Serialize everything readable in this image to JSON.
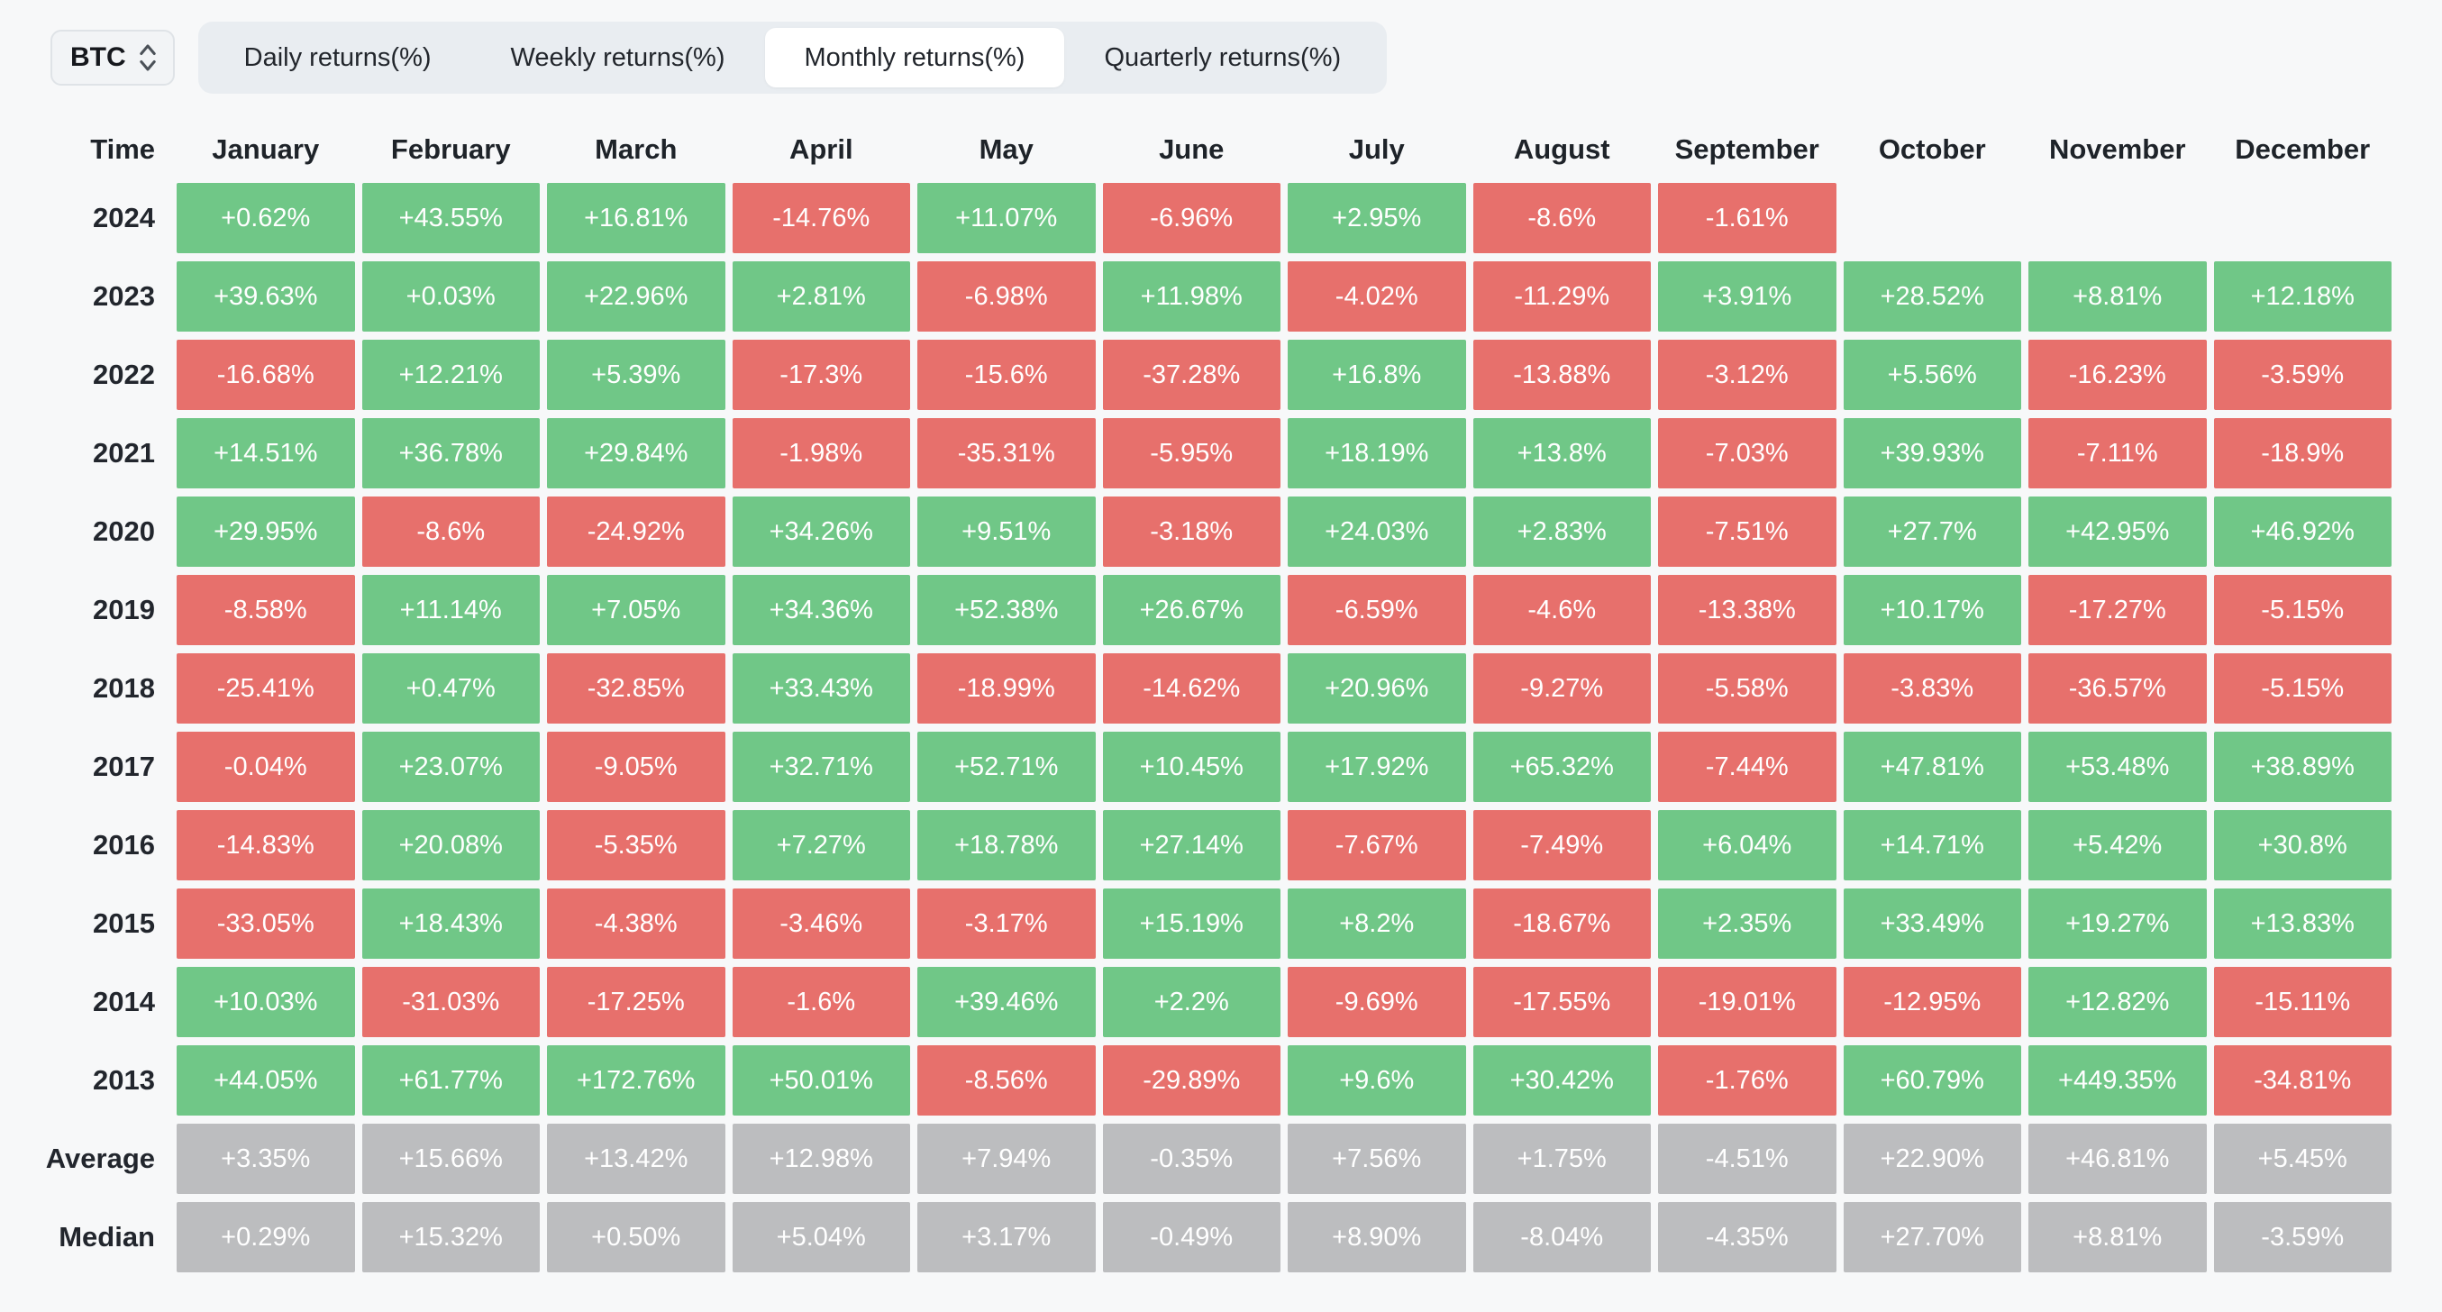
{
  "toolbar": {
    "symbol": "BTC",
    "tabs": [
      {
        "label": "Daily returns(%)",
        "active": false
      },
      {
        "label": "Weekly returns(%)",
        "active": false
      },
      {
        "label": "Monthly returns(%)",
        "active": true
      },
      {
        "label": "Quarterly returns(%)",
        "active": false
      }
    ]
  },
  "colors": {
    "positive": "#70c787",
    "negative": "#e7706c",
    "neutral": "#bcbdbf"
  },
  "table": {
    "time_header": "Time",
    "months": [
      "January",
      "February",
      "March",
      "April",
      "May",
      "June",
      "July",
      "August",
      "September",
      "October",
      "November",
      "December"
    ],
    "rows": [
      {
        "label": "2024",
        "type": "year",
        "values": [
          "+0.62%",
          "+43.55%",
          "+16.81%",
          "-14.76%",
          "+11.07%",
          "-6.96%",
          "+2.95%",
          "-8.6%",
          "-1.61%",
          "",
          "",
          ""
        ]
      },
      {
        "label": "2023",
        "type": "year",
        "values": [
          "+39.63%",
          "+0.03%",
          "+22.96%",
          "+2.81%",
          "-6.98%",
          "+11.98%",
          "-4.02%",
          "-11.29%",
          "+3.91%",
          "+28.52%",
          "+8.81%",
          "+12.18%"
        ]
      },
      {
        "label": "2022",
        "type": "year",
        "values": [
          "-16.68%",
          "+12.21%",
          "+5.39%",
          "-17.3%",
          "-15.6%",
          "-37.28%",
          "+16.8%",
          "-13.88%",
          "-3.12%",
          "+5.56%",
          "-16.23%",
          "-3.59%"
        ]
      },
      {
        "label": "2021",
        "type": "year",
        "values": [
          "+14.51%",
          "+36.78%",
          "+29.84%",
          "-1.98%",
          "-35.31%",
          "-5.95%",
          "+18.19%",
          "+13.8%",
          "-7.03%",
          "+39.93%",
          "-7.11%",
          "-18.9%"
        ]
      },
      {
        "label": "2020",
        "type": "year",
        "values": [
          "+29.95%",
          "-8.6%",
          "-24.92%",
          "+34.26%",
          "+9.51%",
          "-3.18%",
          "+24.03%",
          "+2.83%",
          "-7.51%",
          "+27.7%",
          "+42.95%",
          "+46.92%"
        ]
      },
      {
        "label": "2019",
        "type": "year",
        "values": [
          "-8.58%",
          "+11.14%",
          "+7.05%",
          "+34.36%",
          "+52.38%",
          "+26.67%",
          "-6.59%",
          "-4.6%",
          "-13.38%",
          "+10.17%",
          "-17.27%",
          "-5.15%"
        ]
      },
      {
        "label": "2018",
        "type": "year",
        "values": [
          "-25.41%",
          "+0.47%",
          "-32.85%",
          "+33.43%",
          "-18.99%",
          "-14.62%",
          "+20.96%",
          "-9.27%",
          "-5.58%",
          "-3.83%",
          "-36.57%",
          "-5.15%"
        ]
      },
      {
        "label": "2017",
        "type": "year",
        "values": [
          "-0.04%",
          "+23.07%",
          "-9.05%",
          "+32.71%",
          "+52.71%",
          "+10.45%",
          "+17.92%",
          "+65.32%",
          "-7.44%",
          "+47.81%",
          "+53.48%",
          "+38.89%"
        ]
      },
      {
        "label": "2016",
        "type": "year",
        "values": [
          "-14.83%",
          "+20.08%",
          "-5.35%",
          "+7.27%",
          "+18.78%",
          "+27.14%",
          "-7.67%",
          "-7.49%",
          "+6.04%",
          "+14.71%",
          "+5.42%",
          "+30.8%"
        ]
      },
      {
        "label": "2015",
        "type": "year",
        "values": [
          "-33.05%",
          "+18.43%",
          "-4.38%",
          "-3.46%",
          "-3.17%",
          "+15.19%",
          "+8.2%",
          "-18.67%",
          "+2.35%",
          "+33.49%",
          "+19.27%",
          "+13.83%"
        ]
      },
      {
        "label": "2014",
        "type": "year",
        "values": [
          "+10.03%",
          "-31.03%",
          "-17.25%",
          "-1.6%",
          "+39.46%",
          "+2.2%",
          "-9.69%",
          "-17.55%",
          "-19.01%",
          "-12.95%",
          "+12.82%",
          "-15.11%"
        ]
      },
      {
        "label": "2013",
        "type": "year",
        "values": [
          "+44.05%",
          "+61.77%",
          "+172.76%",
          "+50.01%",
          "-8.56%",
          "-29.89%",
          "+9.6%",
          "+30.42%",
          "-1.76%",
          "+60.79%",
          "+449.35%",
          "-34.81%"
        ]
      },
      {
        "label": "Average",
        "type": "summary",
        "values": [
          "+3.35%",
          "+15.66%",
          "+13.42%",
          "+12.98%",
          "+7.94%",
          "-0.35%",
          "+7.56%",
          "+1.75%",
          "-4.51%",
          "+22.90%",
          "+46.81%",
          "+5.45%"
        ]
      },
      {
        "label": "Median",
        "type": "summary",
        "values": [
          "+0.29%",
          "+15.32%",
          "+0.50%",
          "+5.04%",
          "+3.17%",
          "-0.49%",
          "+8.90%",
          "-8.04%",
          "-4.35%",
          "+27.70%",
          "+8.81%",
          "-3.59%"
        ]
      }
    ]
  }
}
